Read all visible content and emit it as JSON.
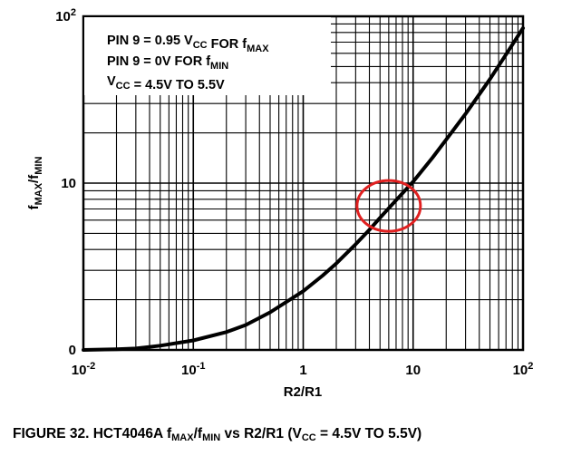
{
  "chart_data": {
    "type": "line",
    "title": "",
    "x_scale": "log",
    "y_scale": "log",
    "xlim": [
      0.01,
      100
    ],
    "ylim": [
      1,
      100
    ],
    "xlabel": "R2/R1",
    "ylabel": {
      "base": "f",
      "sub1": "MAX",
      "sep": "/f",
      "sub2": "MIN"
    },
    "x_ticks": [
      {
        "base": "10",
        "exp": "-2"
      },
      {
        "base": "10",
        "exp": "-1"
      },
      {
        "base": "1",
        "exp": ""
      },
      {
        "base": "10",
        "exp": ""
      },
      {
        "base": "10",
        "exp": "2"
      }
    ],
    "y_ticks": [
      {
        "base": "0",
        "exp": ""
      },
      {
        "base": "10",
        "exp": ""
      },
      {
        "base": "10",
        "exp": "2"
      }
    ],
    "grid": true,
    "series": [
      {
        "x": [
          0.01,
          0.02,
          0.03,
          0.05,
          0.1,
          0.2,
          0.3,
          0.5,
          1,
          1.5,
          2,
          3,
          4,
          5,
          7,
          10,
          15,
          20,
          30,
          40,
          50,
          70,
          100
        ],
        "y": [
          1.0,
          1.01,
          1.02,
          1.06,
          1.14,
          1.28,
          1.41,
          1.68,
          2.25,
          2.79,
          3.3,
          4.3,
          5.25,
          6.2,
          7.9,
          10.2,
          14.2,
          18.2,
          26.0,
          34.0,
          42.0,
          59.0,
          85.0
        ]
      }
    ],
    "annotation": {
      "type": "circle",
      "color": "#e02020",
      "x": 6,
      "y": 7.3
    },
    "notes": [
      {
        "parts": [
          {
            "t": "PIN 9 = 0.95 V"
          },
          {
            "t": "CC",
            "sub": true
          },
          {
            "t": " FOR f"
          },
          {
            "t": "MAX",
            "sub": true
          }
        ]
      },
      {
        "parts": [
          {
            "t": "PIN 9 = 0V FOR f"
          },
          {
            "t": "MIN",
            "sub": true
          }
        ]
      },
      {
        "parts": [
          {
            "t": "V"
          },
          {
            "t": "CC",
            "sub": true
          },
          {
            "t": " = 4.5V TO 5.5V"
          }
        ]
      }
    ]
  },
  "caption": {
    "p1": "FIGURE 32.  HCT4046A f",
    "s1": "MAX",
    "p2": "/f",
    "s2": "MIN",
    "p3": " vs R2/R1 (V",
    "s3": "CC",
    "p4": " = 4.5V TO 5.5V)"
  }
}
